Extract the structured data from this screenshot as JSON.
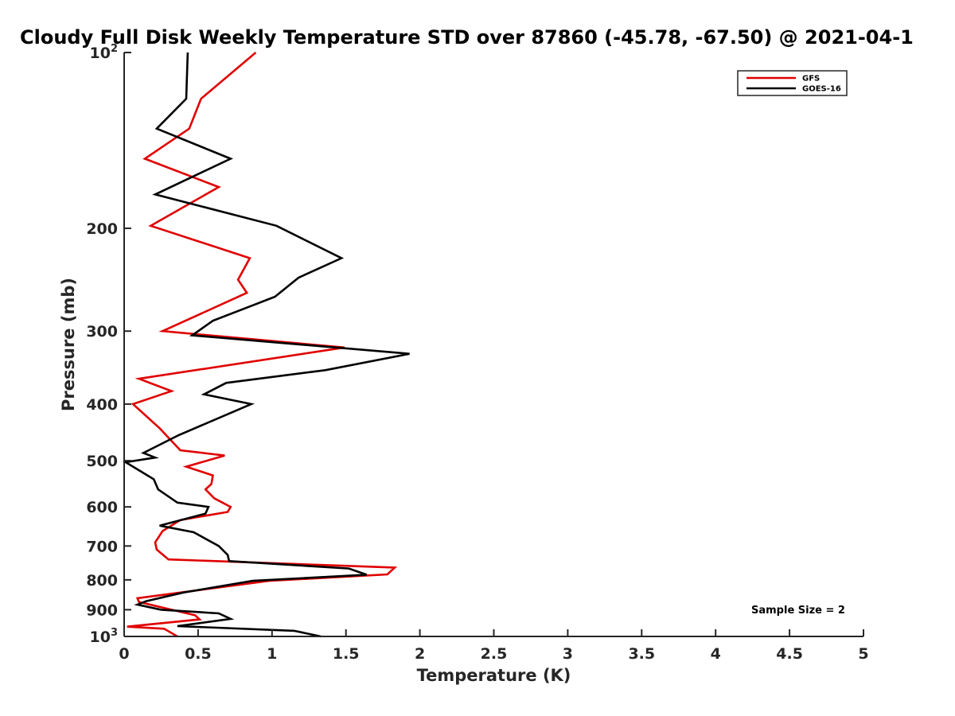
{
  "chart_data": {
    "type": "line",
    "title": "Cloudy Full Disk Weekly Temperature STD over 87860 (-45.78, -67.50) @ 2021-04-1",
    "xlabel": "Temperature (K)",
    "ylabel": "Pressure (mb)",
    "xlim": [
      0,
      5
    ],
    "ylim": [
      100,
      1000
    ],
    "y_scale": "log",
    "y_reversed": true,
    "grid": false,
    "legend_position": "top-right",
    "xticks": [
      "0",
      "0.5",
      "1",
      "1.5",
      "2",
      "2.5",
      "3",
      "3.5",
      "4",
      "4.5",
      "5"
    ],
    "yticks": [
      {
        "value": 200,
        "label": "200"
      },
      {
        "value": 300,
        "label": "300"
      },
      {
        "value": 400,
        "label": "400"
      },
      {
        "value": 500,
        "label": "500"
      },
      {
        "value": 600,
        "label": "600"
      },
      {
        "value": 700,
        "label": "700"
      },
      {
        "value": 800,
        "label": "800"
      },
      {
        "value": 900,
        "label": "900"
      }
    ],
    "ytick_top": {
      "value": 100,
      "base": "10",
      "exp": "2"
    },
    "ytick_bottom": {
      "value": 1000,
      "base": "10",
      "exp": "3"
    },
    "annotation": "Sample Size = 2",
    "series": [
      {
        "name": "GFS",
        "color": "#e00000",
        "points": [
          [
            0.89,
            100
          ],
          [
            0.52,
            120
          ],
          [
            0.44,
            135
          ],
          [
            0.14,
            152
          ],
          [
            0.64,
            170
          ],
          [
            0.18,
            198
          ],
          [
            0.85,
            225
          ],
          [
            0.77,
            245
          ],
          [
            0.83,
            258
          ],
          [
            0.26,
            300
          ],
          [
            1.49,
            320
          ],
          [
            0.1,
            362
          ],
          [
            0.32,
            380
          ],
          [
            0.06,
            400
          ],
          [
            0.24,
            440
          ],
          [
            0.38,
            480
          ],
          [
            0.68,
            490
          ],
          [
            0.42,
            512
          ],
          [
            0.6,
            530
          ],
          [
            0.59,
            548
          ],
          [
            0.55,
            560
          ],
          [
            0.61,
            580
          ],
          [
            0.72,
            600
          ],
          [
            0.7,
            612
          ],
          [
            0.38,
            632
          ],
          [
            0.26,
            660
          ],
          [
            0.21,
            690
          ],
          [
            0.22,
            710
          ],
          [
            0.3,
            738
          ],
          [
            1.83,
            762
          ],
          [
            1.78,
            783
          ],
          [
            0.98,
            803
          ],
          [
            0.09,
            860
          ],
          [
            0.1,
            873
          ],
          [
            0.48,
            920
          ],
          [
            0.51,
            935
          ],
          [
            0.02,
            962
          ],
          [
            0.27,
            970
          ],
          [
            0.36,
            1000
          ]
        ]
      },
      {
        "name": "GOES-16",
        "color": "#000000",
        "points": [
          [
            0.43,
            100
          ],
          [
            0.42,
            120
          ],
          [
            0.22,
            135
          ],
          [
            0.72,
            152
          ],
          [
            0.21,
            175
          ],
          [
            1.03,
            198
          ],
          [
            1.47,
            225
          ],
          [
            1.18,
            243
          ],
          [
            1.02,
            262
          ],
          [
            0.6,
            288
          ],
          [
            0.46,
            305
          ],
          [
            1.93,
            328
          ],
          [
            1.36,
            350
          ],
          [
            0.69,
            368
          ],
          [
            0.54,
            385
          ],
          [
            0.86,
            400
          ],
          [
            0.37,
            452
          ],
          [
            0.13,
            485
          ],
          [
            0.21,
            494
          ],
          [
            0.01,
            503
          ],
          [
            0.2,
            538
          ],
          [
            0.23,
            560
          ],
          [
            0.36,
            590
          ],
          [
            0.57,
            600
          ],
          [
            0.55,
            616
          ],
          [
            0.24,
            646
          ],
          [
            0.47,
            663
          ],
          [
            0.64,
            700
          ],
          [
            0.7,
            725
          ],
          [
            0.71,
            743
          ],
          [
            1.52,
            765
          ],
          [
            1.64,
            784
          ],
          [
            0.87,
            803
          ],
          [
            0.4,
            841
          ],
          [
            0.15,
            870
          ],
          [
            0.09,
            882
          ],
          [
            0.25,
            900
          ],
          [
            0.64,
            913
          ],
          [
            0.72,
            933
          ],
          [
            0.36,
            960
          ],
          [
            1.15,
            978
          ],
          [
            1.33,
            1000
          ]
        ]
      }
    ]
  }
}
